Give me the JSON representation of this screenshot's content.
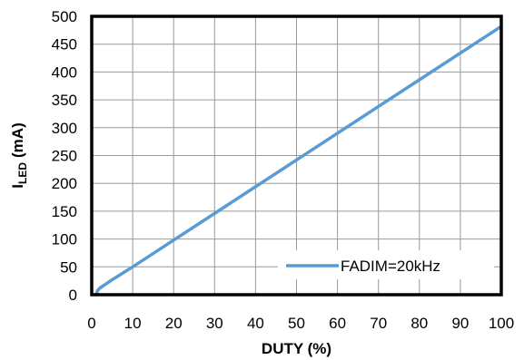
{
  "chart_data": {
    "type": "line",
    "xlabel": "DUTY (%)",
    "ylabel_main": "I",
    "ylabel_sub": "LED",
    "ylabel_unit": "(mA)",
    "xlim": [
      0,
      100
    ],
    "ylim": [
      0,
      500
    ],
    "x_ticks": [
      "0",
      "10",
      "20",
      "30",
      "40",
      "50",
      "60",
      "70",
      "80",
      "90",
      "100"
    ],
    "y_ticks": [
      "0",
      "50",
      "100",
      "150",
      "200",
      "250",
      "300",
      "350",
      "400",
      "450",
      "500"
    ],
    "grid": true,
    "legend_position": "bottom-right",
    "series": [
      {
        "name": "FADIM=20kHz",
        "color": "#5b9bd5",
        "x": [
          1,
          1.5,
          2,
          5,
          10,
          20,
          30,
          40,
          50,
          60,
          70,
          80,
          90,
          100
        ],
        "y": [
          0,
          8,
          12,
          27,
          50,
          98,
          146,
          194,
          242,
          290,
          338,
          386,
          434,
          482
        ]
      }
    ]
  }
}
